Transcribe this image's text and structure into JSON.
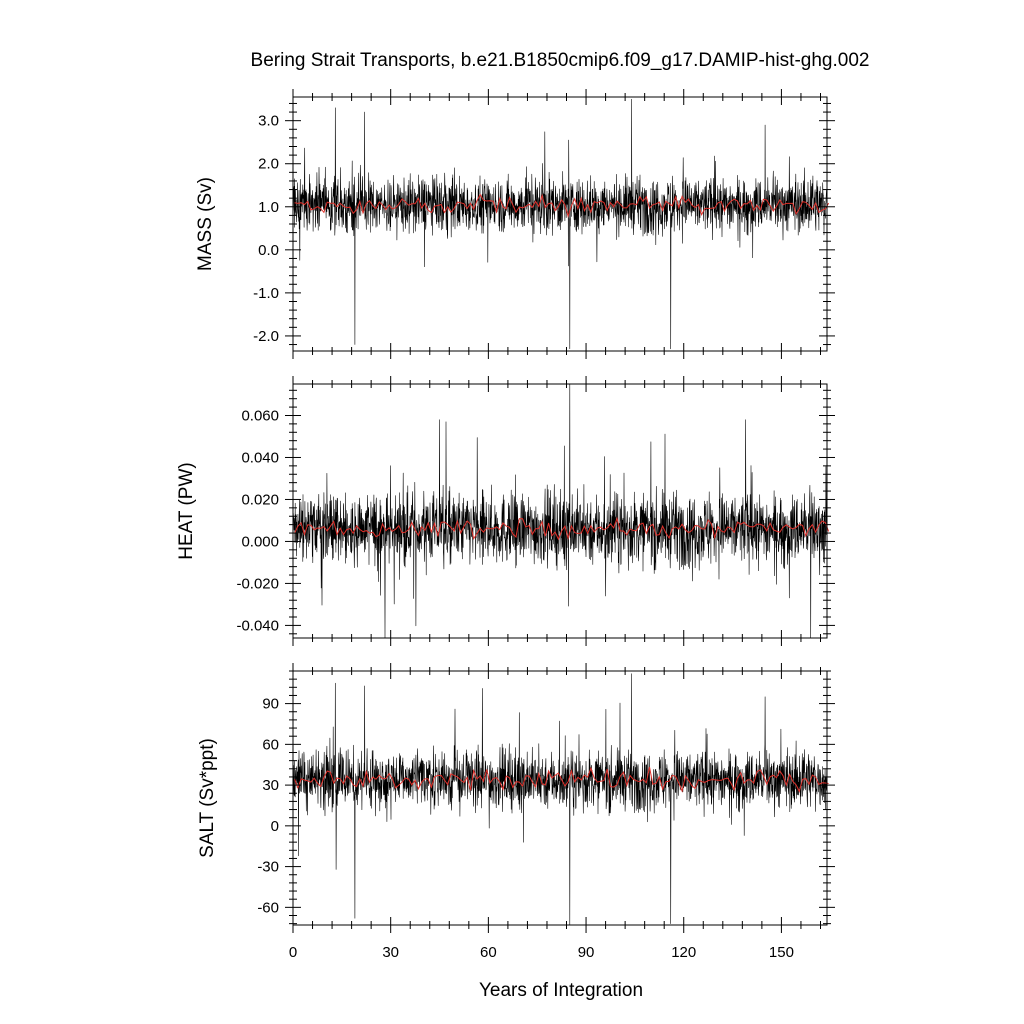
{
  "title": "Bering Strait Transports, b.e21.B1850cmip6.f09_g17.DAMIP-hist-ghg.002",
  "xlabel": "Years of Integration",
  "colors": {
    "monthly": "#000000",
    "annual": "#e0302a"
  },
  "chart_data": [
    {
      "type": "line",
      "ylabel": "MASS (Sv)",
      "xlim": [
        0,
        164
      ],
      "ylim": [
        -2.35,
        3.55
      ],
      "xticks": [
        0,
        30,
        60,
        90,
        120,
        150
      ],
      "xtick_labels": [
        "0",
        "30",
        "60",
        "90",
        "120",
        "150"
      ],
      "yticks": [
        -2.0,
        -1.0,
        0.0,
        1.0,
        2.0,
        3.0
      ],
      "ytick_labels": [
        "-2.0",
        "-1.0",
        "0.0",
        "1.0",
        "2.0",
        "3.0"
      ],
      "baseline": 1.05,
      "spread": 0.45,
      "annual_mean": 1.05,
      "annual_spread": 0.15,
      "peaks": [
        [
          13,
          3.3
        ],
        [
          19,
          -2.2
        ],
        [
          22,
          3.2
        ],
        [
          85,
          -2.3
        ],
        [
          104,
          3.5
        ],
        [
          116,
          -2.3
        ],
        [
          145,
          2.9
        ]
      ]
    },
    {
      "type": "line",
      "ylabel": "HEAT (PW)",
      "xlim": [
        0,
        164
      ],
      "ylim": [
        -0.046,
        0.075
      ],
      "xticks": [
        0,
        30,
        60,
        90,
        120,
        150
      ],
      "xtick_labels": [
        "0",
        "30",
        "60",
        "90",
        "120",
        "150"
      ],
      "yticks": [
        -0.04,
        -0.02,
        0.0,
        0.02,
        0.04,
        0.06
      ],
      "ytick_labels": [
        "-0.040",
        "-0.020",
        "0.000",
        "0.020",
        "0.040",
        "0.060"
      ],
      "baseline": 0.006,
      "spread": 0.012,
      "annual_mean": 0.006,
      "annual_spread": 0.003,
      "peaks": [
        [
          85,
          0.075
        ],
        [
          139,
          0.058
        ],
        [
          159,
          -0.046
        ],
        [
          96,
          -0.026
        ],
        [
          45,
          0.058
        ]
      ]
    },
    {
      "type": "line",
      "ylabel": "SALT (Sv*ppt)",
      "xlim": [
        0,
        164
      ],
      "ylim": [
        -73,
        114
      ],
      "xticks": [
        0,
        30,
        60,
        90,
        120,
        150
      ],
      "xtick_labels": [
        "0",
        "30",
        "60",
        "90",
        "120",
        "150"
      ],
      "yticks": [
        -60,
        -30,
        0,
        30,
        60,
        90
      ],
      "ytick_labels": [
        "-60",
        "-30",
        "0",
        "30",
        "60",
        "90"
      ],
      "baseline": 34,
      "spread": 15,
      "annual_mean": 34,
      "annual_spread": 5,
      "peaks": [
        [
          13,
          105
        ],
        [
          19,
          -68
        ],
        [
          22,
          103
        ],
        [
          85,
          -73
        ],
        [
          104,
          112
        ],
        [
          116,
          -72
        ],
        [
          145,
          95
        ]
      ]
    }
  ]
}
